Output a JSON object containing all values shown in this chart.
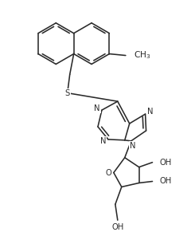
{
  "background": "#ffffff",
  "line_color": "#2a2a2a",
  "line_width": 1.15,
  "font_size": 7.2,
  "figsize": [
    2.4,
    2.91
  ],
  "dpi": 100,
  "xlim": [
    0,
    240
  ],
  "ylim": [
    0,
    291
  ]
}
